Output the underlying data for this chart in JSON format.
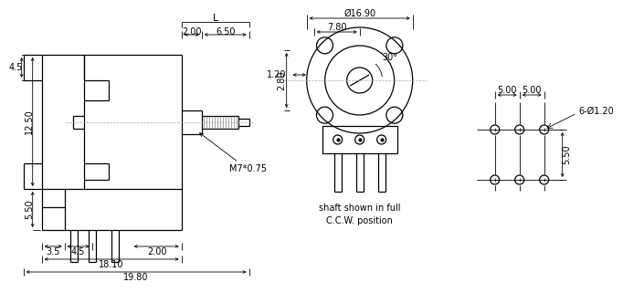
{
  "bg_color": "#ffffff",
  "line_color": "#000000",
  "dim_color": "#000000",
  "gray_color": "#aaaaaa",
  "font_size": 7.0,
  "annotations": {
    "L": "L",
    "d200": "2.00",
    "d650": "6.50",
    "d1690": "Ø16.90",
    "d780": "7.80",
    "d30": "30°",
    "d120": "1.20",
    "d280": "2.80",
    "d1250": "12.50",
    "d45a": "4.5",
    "d550a": "5.50",
    "d35": "3.5",
    "d45b": "4.5",
    "d200b": "2.00",
    "d1810": "18.10",
    "d1980": "19.80",
    "m7": "M7*0.75",
    "d500a": "5.00",
    "d500b": "5.00",
    "d550b": "5.50",
    "d6phi": "6-Ø1.20",
    "cap1": "shaft shown in full",
    "cap2": "C.C.W. position"
  }
}
